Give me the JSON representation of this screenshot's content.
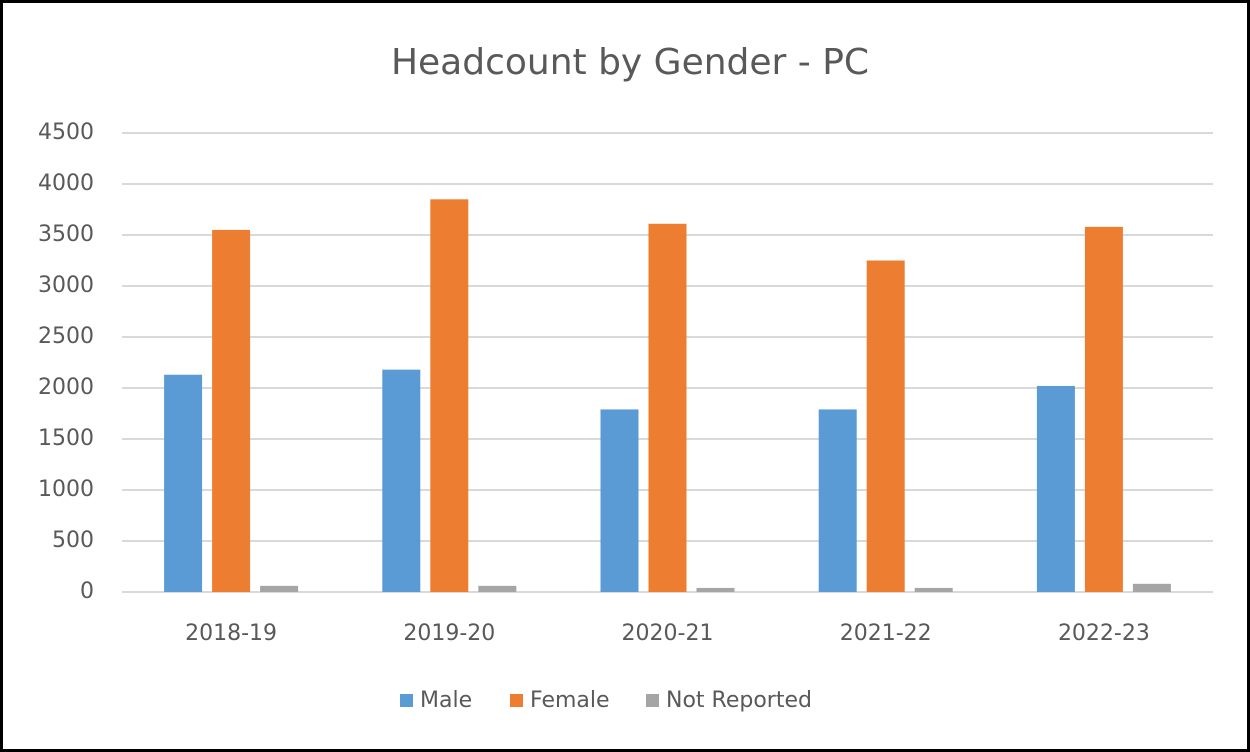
{
  "chart_data": {
    "type": "bar",
    "title": "Headcount by Gender - PC",
    "categories": [
      "2018-19",
      "2019-20",
      "2020-21",
      "2021-22",
      "2022-23"
    ],
    "series": [
      {
        "name": "Male",
        "color": "#5b9bd5",
        "values": [
          2130,
          2180,
          1790,
          1790,
          2020
        ]
      },
      {
        "name": "Female",
        "color": "#ed7d31",
        "values": [
          3550,
          3850,
          3610,
          3250,
          3580
        ]
      },
      {
        "name": "Not Reported",
        "color": "#a5a5a5",
        "values": [
          60,
          60,
          40,
          40,
          80
        ]
      }
    ],
    "ylim": [
      0,
      4500
    ],
    "yticks": [
      0,
      500,
      1000,
      1500,
      2000,
      2500,
      3000,
      3500,
      4000,
      4500
    ],
    "grid": true,
    "legend": "bottom"
  }
}
